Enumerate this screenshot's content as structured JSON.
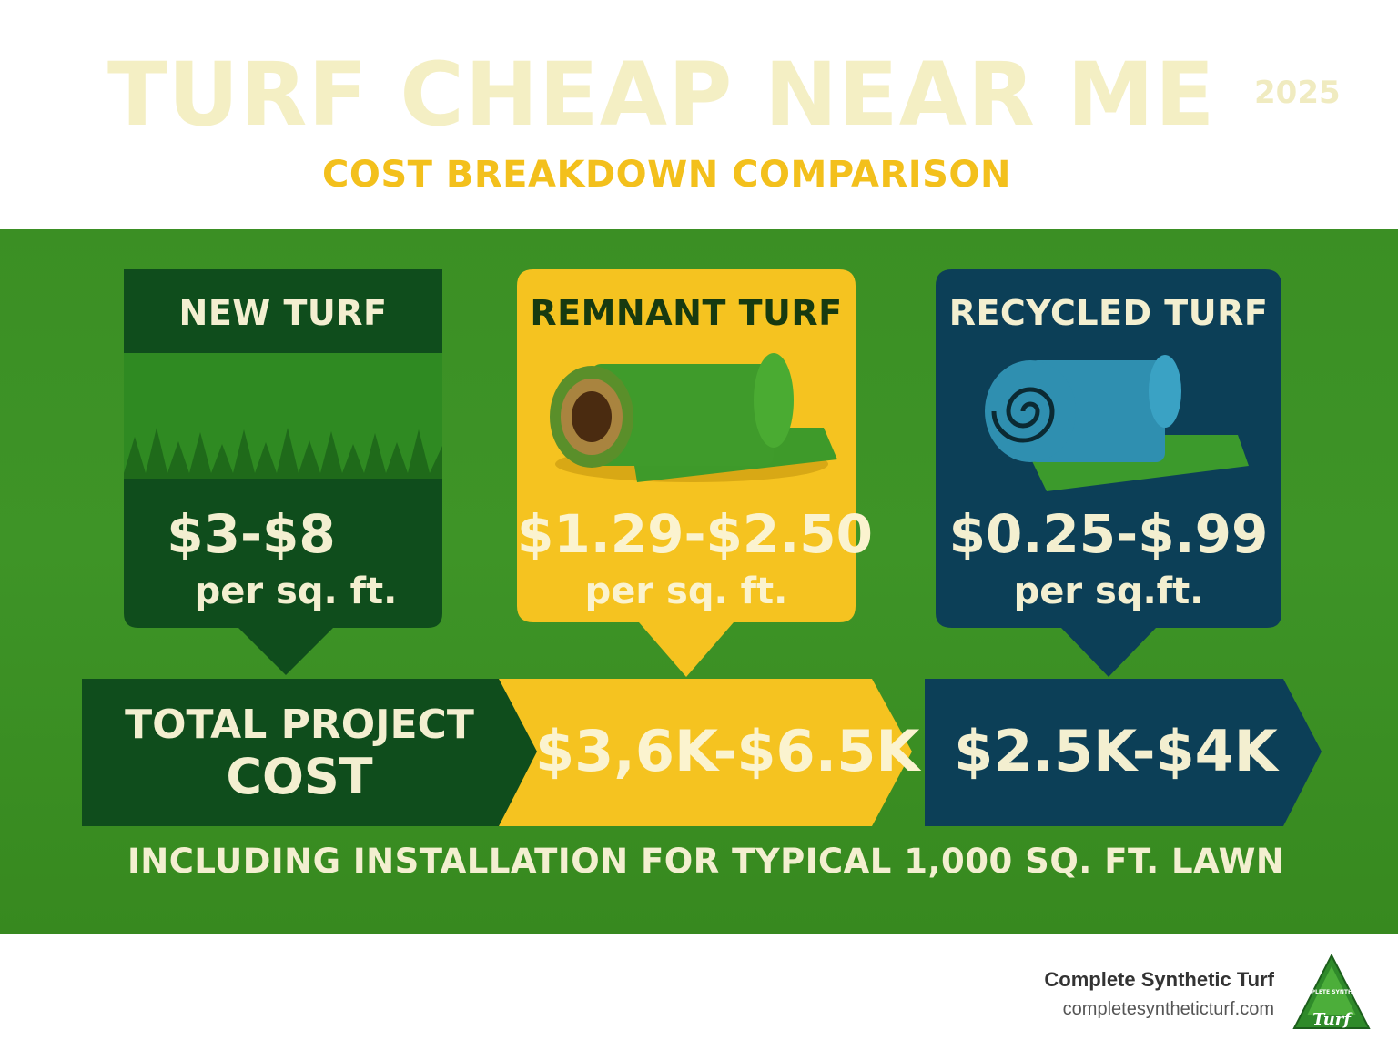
{
  "header": {
    "title": "TURF CHEAP NEAR ME",
    "year": "2025",
    "subtitle": "COST BREAKDOWN COMPARISON"
  },
  "cards": [
    {
      "title": "NEW TURF",
      "price": "$3-$8",
      "unit": "per sq. ft.",
      "image": "grass-icon",
      "color": "#0f4d1c"
    },
    {
      "title": "REMNANT TURF",
      "price": "$1.29-$2.50",
      "unit": "per sq. ft.",
      "image": "turf-roll-icon",
      "color": "#f5c320"
    },
    {
      "title": "RECYCLED TURF",
      "price": "$0.25-$.99",
      "unit": "per sq.ft.",
      "image": "recycled-roll-icon",
      "color": "#0c3f57"
    }
  ],
  "total": {
    "label_line1": "TOTAL PROJECT",
    "label_line2": "COST",
    "remnant_value": "$3,6K-$6.5K",
    "recycled_value": "$2.5K-$4K"
  },
  "footnote": "INCLUDING INSTALLATION FOR TYPICAL 1,000 SQ. FT. LAWN",
  "footer": {
    "brand": "Complete Synthetic Turf",
    "url": "completesyntheticturf.com",
    "logo_text_top": "COMPLETE SYNTHETIC",
    "logo_text_bottom": "Turf"
  },
  "colors": {
    "field_green": "#3e9427",
    "dark_green": "#0f4d1c",
    "yellow": "#f5c320",
    "navy": "#0c3f57",
    "cream": "#f3efd0"
  }
}
